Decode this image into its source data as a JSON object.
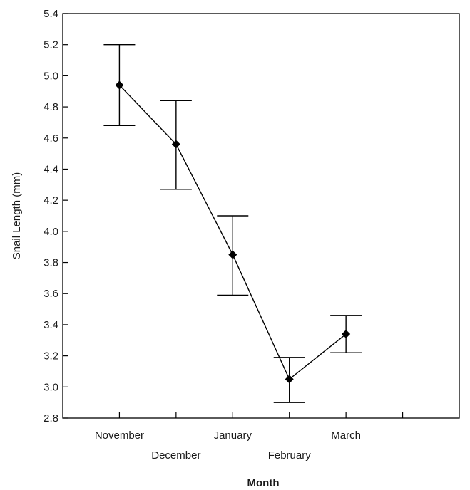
{
  "chart_data": {
    "type": "line",
    "xlabel": "Month",
    "ylabel": "Snail Length (mm)",
    "categories": [
      "November",
      "December",
      "January",
      "February",
      "March"
    ],
    "series": [
      {
        "values": [
          4.94,
          4.56,
          3.85,
          3.05,
          3.34
        ],
        "error_low": [
          4.68,
          4.27,
          3.59,
          2.9,
          3.22
        ],
        "error_high": [
          5.2,
          4.84,
          4.1,
          3.19,
          3.46
        ]
      }
    ],
    "ylim": [
      2.8,
      5.4
    ],
    "yticks": [
      "2.8",
      "3.0",
      "3.2",
      "3.4",
      "3.6",
      "3.8",
      "4.0",
      "4.2",
      "4.4",
      "4.6",
      "4.8",
      "5.0",
      "5.2",
      "5.4"
    ],
    "x_range": [
      0,
      7
    ],
    "grid": false,
    "marker": "diamond",
    "line_color": "#000000"
  }
}
